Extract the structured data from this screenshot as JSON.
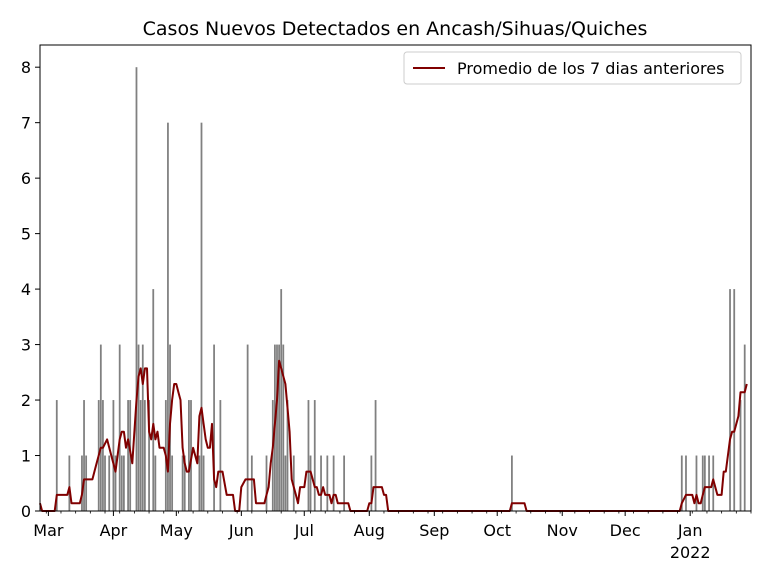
{
  "chart_data": {
    "type": "bar",
    "title": "Casos Nuevos Detectados en Ancash/Sihuas/Quiches",
    "xlabel": "",
    "ylabel": "",
    "x_range": [
      "2021-02-25",
      "2022-01-30"
    ],
    "ylim": [
      0,
      8.4
    ],
    "y_ticks": [
      0,
      1,
      2,
      3,
      4,
      5,
      6,
      7,
      8
    ],
    "x_ticks": [
      {
        "date": "2021-03-01",
        "label": "Mar"
      },
      {
        "date": "2021-04-01",
        "label": "Apr"
      },
      {
        "date": "2021-05-01",
        "label": "May"
      },
      {
        "date": "2021-06-01",
        "label": "Jun"
      },
      {
        "date": "2021-07-01",
        "label": "Jul"
      },
      {
        "date": "2021-08-01",
        "label": "Aug"
      },
      {
        "date": "2021-09-01",
        "label": "Sep"
      },
      {
        "date": "2021-10-01",
        "label": "Oct"
      },
      {
        "date": "2021-11-01",
        "label": "Nov"
      },
      {
        "date": "2021-12-01",
        "label": "Dec"
      },
      {
        "date": "2022-01-01",
        "label": "Jan",
        "sublabel": "2022"
      }
    ],
    "grid": false,
    "legend_position": "top-right",
    "colors": {
      "bars": "#808080",
      "line": "#800000"
    },
    "series": [
      {
        "type": "bar",
        "values": [
          [
            "2021-03-05",
            2
          ],
          [
            "2021-03-11",
            1
          ],
          [
            "2021-03-17",
            1
          ],
          [
            "2021-03-18",
            2
          ],
          [
            "2021-03-19",
            1
          ],
          [
            "2021-03-25",
            2
          ],
          [
            "2021-03-26",
            3
          ],
          [
            "2021-03-27",
            2
          ],
          [
            "2021-03-28",
            1
          ],
          [
            "2021-03-30",
            1
          ],
          [
            "2021-04-01",
            2
          ],
          [
            "2021-04-02",
            1
          ],
          [
            "2021-04-04",
            3
          ],
          [
            "2021-04-05",
            1
          ],
          [
            "2021-04-06",
            1
          ],
          [
            "2021-04-08",
            2
          ],
          [
            "2021-04-09",
            2
          ],
          [
            "2021-04-12",
            8
          ],
          [
            "2021-04-13",
            3
          ],
          [
            "2021-04-14",
            2
          ],
          [
            "2021-04-15",
            3
          ],
          [
            "2021-04-16",
            2
          ],
          [
            "2021-04-18",
            2
          ],
          [
            "2021-04-20",
            4
          ],
          [
            "2021-04-21",
            1
          ],
          [
            "2021-04-26",
            2
          ],
          [
            "2021-04-27",
            7
          ],
          [
            "2021-04-28",
            3
          ],
          [
            "2021-04-29",
            1
          ],
          [
            "2021-05-04",
            1
          ],
          [
            "2021-05-05",
            1
          ],
          [
            "2021-05-07",
            2
          ],
          [
            "2021-05-08",
            2
          ],
          [
            "2021-05-12",
            1
          ],
          [
            "2021-05-13",
            7
          ],
          [
            "2021-05-14",
            1
          ],
          [
            "2021-05-19",
            3
          ],
          [
            "2021-05-22",
            2
          ],
          [
            "2021-06-04",
            3
          ],
          [
            "2021-06-06",
            1
          ],
          [
            "2021-06-13",
            1
          ],
          [
            "2021-06-16",
            2
          ],
          [
            "2021-06-17",
            3
          ],
          [
            "2021-06-18",
            3
          ],
          [
            "2021-06-19",
            3
          ],
          [
            "2021-06-20",
            4
          ],
          [
            "2021-06-21",
            3
          ],
          [
            "2021-06-22",
            1
          ],
          [
            "2021-06-23",
            2
          ],
          [
            "2021-06-26",
            1
          ],
          [
            "2021-07-03",
            2
          ],
          [
            "2021-07-04",
            1
          ],
          [
            "2021-07-06",
            2
          ],
          [
            "2021-07-09",
            1
          ],
          [
            "2021-07-12",
            1
          ],
          [
            "2021-07-15",
            1
          ],
          [
            "2021-07-20",
            1
          ],
          [
            "2021-08-02",
            1
          ],
          [
            "2021-08-04",
            2
          ],
          [
            "2021-10-08",
            1
          ],
          [
            "2021-12-28",
            1
          ],
          [
            "2021-12-30",
            1
          ],
          [
            "2022-01-04",
            1
          ],
          [
            "2022-01-07",
            1
          ],
          [
            "2022-01-08",
            1
          ],
          [
            "2022-01-10",
            1
          ],
          [
            "2022-01-12",
            1
          ],
          [
            "2022-01-20",
            4
          ],
          [
            "2022-01-22",
            4
          ],
          [
            "2022-01-25",
            2
          ],
          [
            "2022-01-27",
            3
          ]
        ]
      },
      {
        "type": "line",
        "name": "Promedio de los 7 dias anteriores",
        "values": [
          [
            "2021-02-25",
            0.14
          ],
          [
            "2021-02-26",
            0
          ],
          [
            "2021-03-04",
            0
          ],
          [
            "2021-03-05",
            0.29
          ],
          [
            "2021-03-10",
            0.29
          ],
          [
            "2021-03-11",
            0.43
          ],
          [
            "2021-03-12",
            0.14
          ],
          [
            "2021-03-16",
            0.14
          ],
          [
            "2021-03-17",
            0.29
          ],
          [
            "2021-03-18",
            0.57
          ],
          [
            "2021-03-22",
            0.57
          ],
          [
            "2021-03-24",
            0.86
          ],
          [
            "2021-03-26",
            1.14
          ],
          [
            "2021-03-27",
            1.14
          ],
          [
            "2021-03-29",
            1.29
          ],
          [
            "2021-03-31",
            1.0
          ],
          [
            "2021-04-02",
            0.71
          ],
          [
            "2021-04-04",
            1.29
          ],
          [
            "2021-04-05",
            1.43
          ],
          [
            "2021-04-06",
            1.43
          ],
          [
            "2021-04-07",
            1.14
          ],
          [
            "2021-04-08",
            1.29
          ],
          [
            "2021-04-10",
            0.86
          ],
          [
            "2021-04-12",
            2.0
          ],
          [
            "2021-04-13",
            2.43
          ],
          [
            "2021-04-14",
            2.57
          ],
          [
            "2021-04-15",
            2.29
          ],
          [
            "2021-04-16",
            2.57
          ],
          [
            "2021-04-17",
            2.57
          ],
          [
            "2021-04-18",
            1.43
          ],
          [
            "2021-04-19",
            1.29
          ],
          [
            "2021-04-20",
            1.57
          ],
          [
            "2021-04-21",
            1.29
          ],
          [
            "2021-04-22",
            1.43
          ],
          [
            "2021-04-23",
            1.14
          ],
          [
            "2021-04-25",
            1.14
          ],
          [
            "2021-04-26",
            1.0
          ],
          [
            "2021-04-27",
            0.71
          ],
          [
            "2021-04-28",
            1.57
          ],
          [
            "2021-04-29",
            2.0
          ],
          [
            "2021-04-30",
            2.29
          ],
          [
            "2021-05-01",
            2.29
          ],
          [
            "2021-05-02",
            2.14
          ],
          [
            "2021-05-03",
            2.0
          ],
          [
            "2021-05-04",
            1.14
          ],
          [
            "2021-05-05",
            0.86
          ],
          [
            "2021-05-06",
            0.71
          ],
          [
            "2021-05-07",
            0.71
          ],
          [
            "2021-05-09",
            1.14
          ],
          [
            "2021-05-10",
            1.0
          ],
          [
            "2021-05-11",
            0.86
          ],
          [
            "2021-05-12",
            1.71
          ],
          [
            "2021-05-13",
            1.86
          ],
          [
            "2021-05-14",
            1.57
          ],
          [
            "2021-05-15",
            1.29
          ],
          [
            "2021-05-16",
            1.14
          ],
          [
            "2021-05-17",
            1.14
          ],
          [
            "2021-05-18",
            1.57
          ],
          [
            "2021-05-19",
            0.57
          ],
          [
            "2021-05-20",
            0.43
          ],
          [
            "2021-05-21",
            0.71
          ],
          [
            "2021-05-22",
            0.71
          ],
          [
            "2021-05-23",
            0.71
          ],
          [
            "2021-05-25",
            0.29
          ],
          [
            "2021-05-28",
            0.29
          ],
          [
            "2021-05-29",
            0.0
          ],
          [
            "2021-05-31",
            0.0
          ],
          [
            "2021-06-01",
            0.43
          ],
          [
            "2021-06-03",
            0.57
          ],
          [
            "2021-06-07",
            0.57
          ],
          [
            "2021-06-08",
            0.14
          ],
          [
            "2021-06-12",
            0.14
          ],
          [
            "2021-06-13",
            0.29
          ],
          [
            "2021-06-14",
            0.43
          ],
          [
            "2021-06-15",
            0.86
          ],
          [
            "2021-06-16",
            1.14
          ],
          [
            "2021-06-17",
            1.57
          ],
          [
            "2021-06-18",
            2.0
          ],
          [
            "2021-06-19",
            2.71
          ],
          [
            "2021-06-20",
            2.57
          ],
          [
            "2021-06-21",
            2.43
          ],
          [
            "2021-06-22",
            2.29
          ],
          [
            "2021-06-23",
            1.86
          ],
          [
            "2021-06-24",
            1.43
          ],
          [
            "2021-06-25",
            0.57
          ],
          [
            "2021-06-27",
            0.29
          ],
          [
            "2021-06-28",
            0.14
          ],
          [
            "2021-06-29",
            0.43
          ],
          [
            "2021-07-01",
            0.43
          ],
          [
            "2021-07-02",
            0.71
          ],
          [
            "2021-07-04",
            0.71
          ],
          [
            "2021-07-05",
            0.57
          ],
          [
            "2021-07-06",
            0.43
          ],
          [
            "2021-07-07",
            0.43
          ],
          [
            "2021-07-08",
            0.29
          ],
          [
            "2021-07-09",
            0.29
          ],
          [
            "2021-07-10",
            0.43
          ],
          [
            "2021-07-11",
            0.29
          ],
          [
            "2021-07-13",
            0.29
          ],
          [
            "2021-07-14",
            0.14
          ],
          [
            "2021-07-15",
            0.29
          ],
          [
            "2021-07-16",
            0.29
          ],
          [
            "2021-07-17",
            0.14
          ],
          [
            "2021-07-22",
            0.14
          ],
          [
            "2021-07-23",
            0.0
          ],
          [
            "2021-07-31",
            0.0
          ],
          [
            "2021-08-01",
            0.14
          ],
          [
            "2021-08-02",
            0.14
          ],
          [
            "2021-08-03",
            0.43
          ],
          [
            "2021-08-07",
            0.43
          ],
          [
            "2021-08-08",
            0.29
          ],
          [
            "2021-08-09",
            0.29
          ],
          [
            "2021-08-10",
            0.0
          ],
          [
            "2021-10-07",
            0.0
          ],
          [
            "2021-10-08",
            0.14
          ],
          [
            "2021-10-14",
            0.14
          ],
          [
            "2021-10-15",
            0.0
          ],
          [
            "2021-12-27",
            0.0
          ],
          [
            "2021-12-28",
            0.14
          ],
          [
            "2021-12-30",
            0.29
          ],
          [
            "2022-01-02",
            0.29
          ],
          [
            "2022-01-03",
            0.14
          ],
          [
            "2022-01-04",
            0.29
          ],
          [
            "2022-01-05",
            0.14
          ],
          [
            "2022-01-06",
            0.14
          ],
          [
            "2022-01-07",
            0.29
          ],
          [
            "2022-01-08",
            0.43
          ],
          [
            "2022-01-11",
            0.43
          ],
          [
            "2022-01-12",
            0.57
          ],
          [
            "2022-01-13",
            0.43
          ],
          [
            "2022-01-14",
            0.29
          ],
          [
            "2022-01-15",
            0.29
          ],
          [
            "2022-01-16",
            0.29
          ],
          [
            "2022-01-17",
            0.71
          ],
          [
            "2022-01-18",
            0.71
          ],
          [
            "2022-01-20",
            1.29
          ],
          [
            "2022-01-21",
            1.43
          ],
          [
            "2022-01-22",
            1.43
          ],
          [
            "2022-01-24",
            1.71
          ],
          [
            "2022-01-25",
            2.14
          ],
          [
            "2022-01-27",
            2.14
          ],
          [
            "2022-01-28",
            2.29
          ]
        ]
      }
    ]
  }
}
